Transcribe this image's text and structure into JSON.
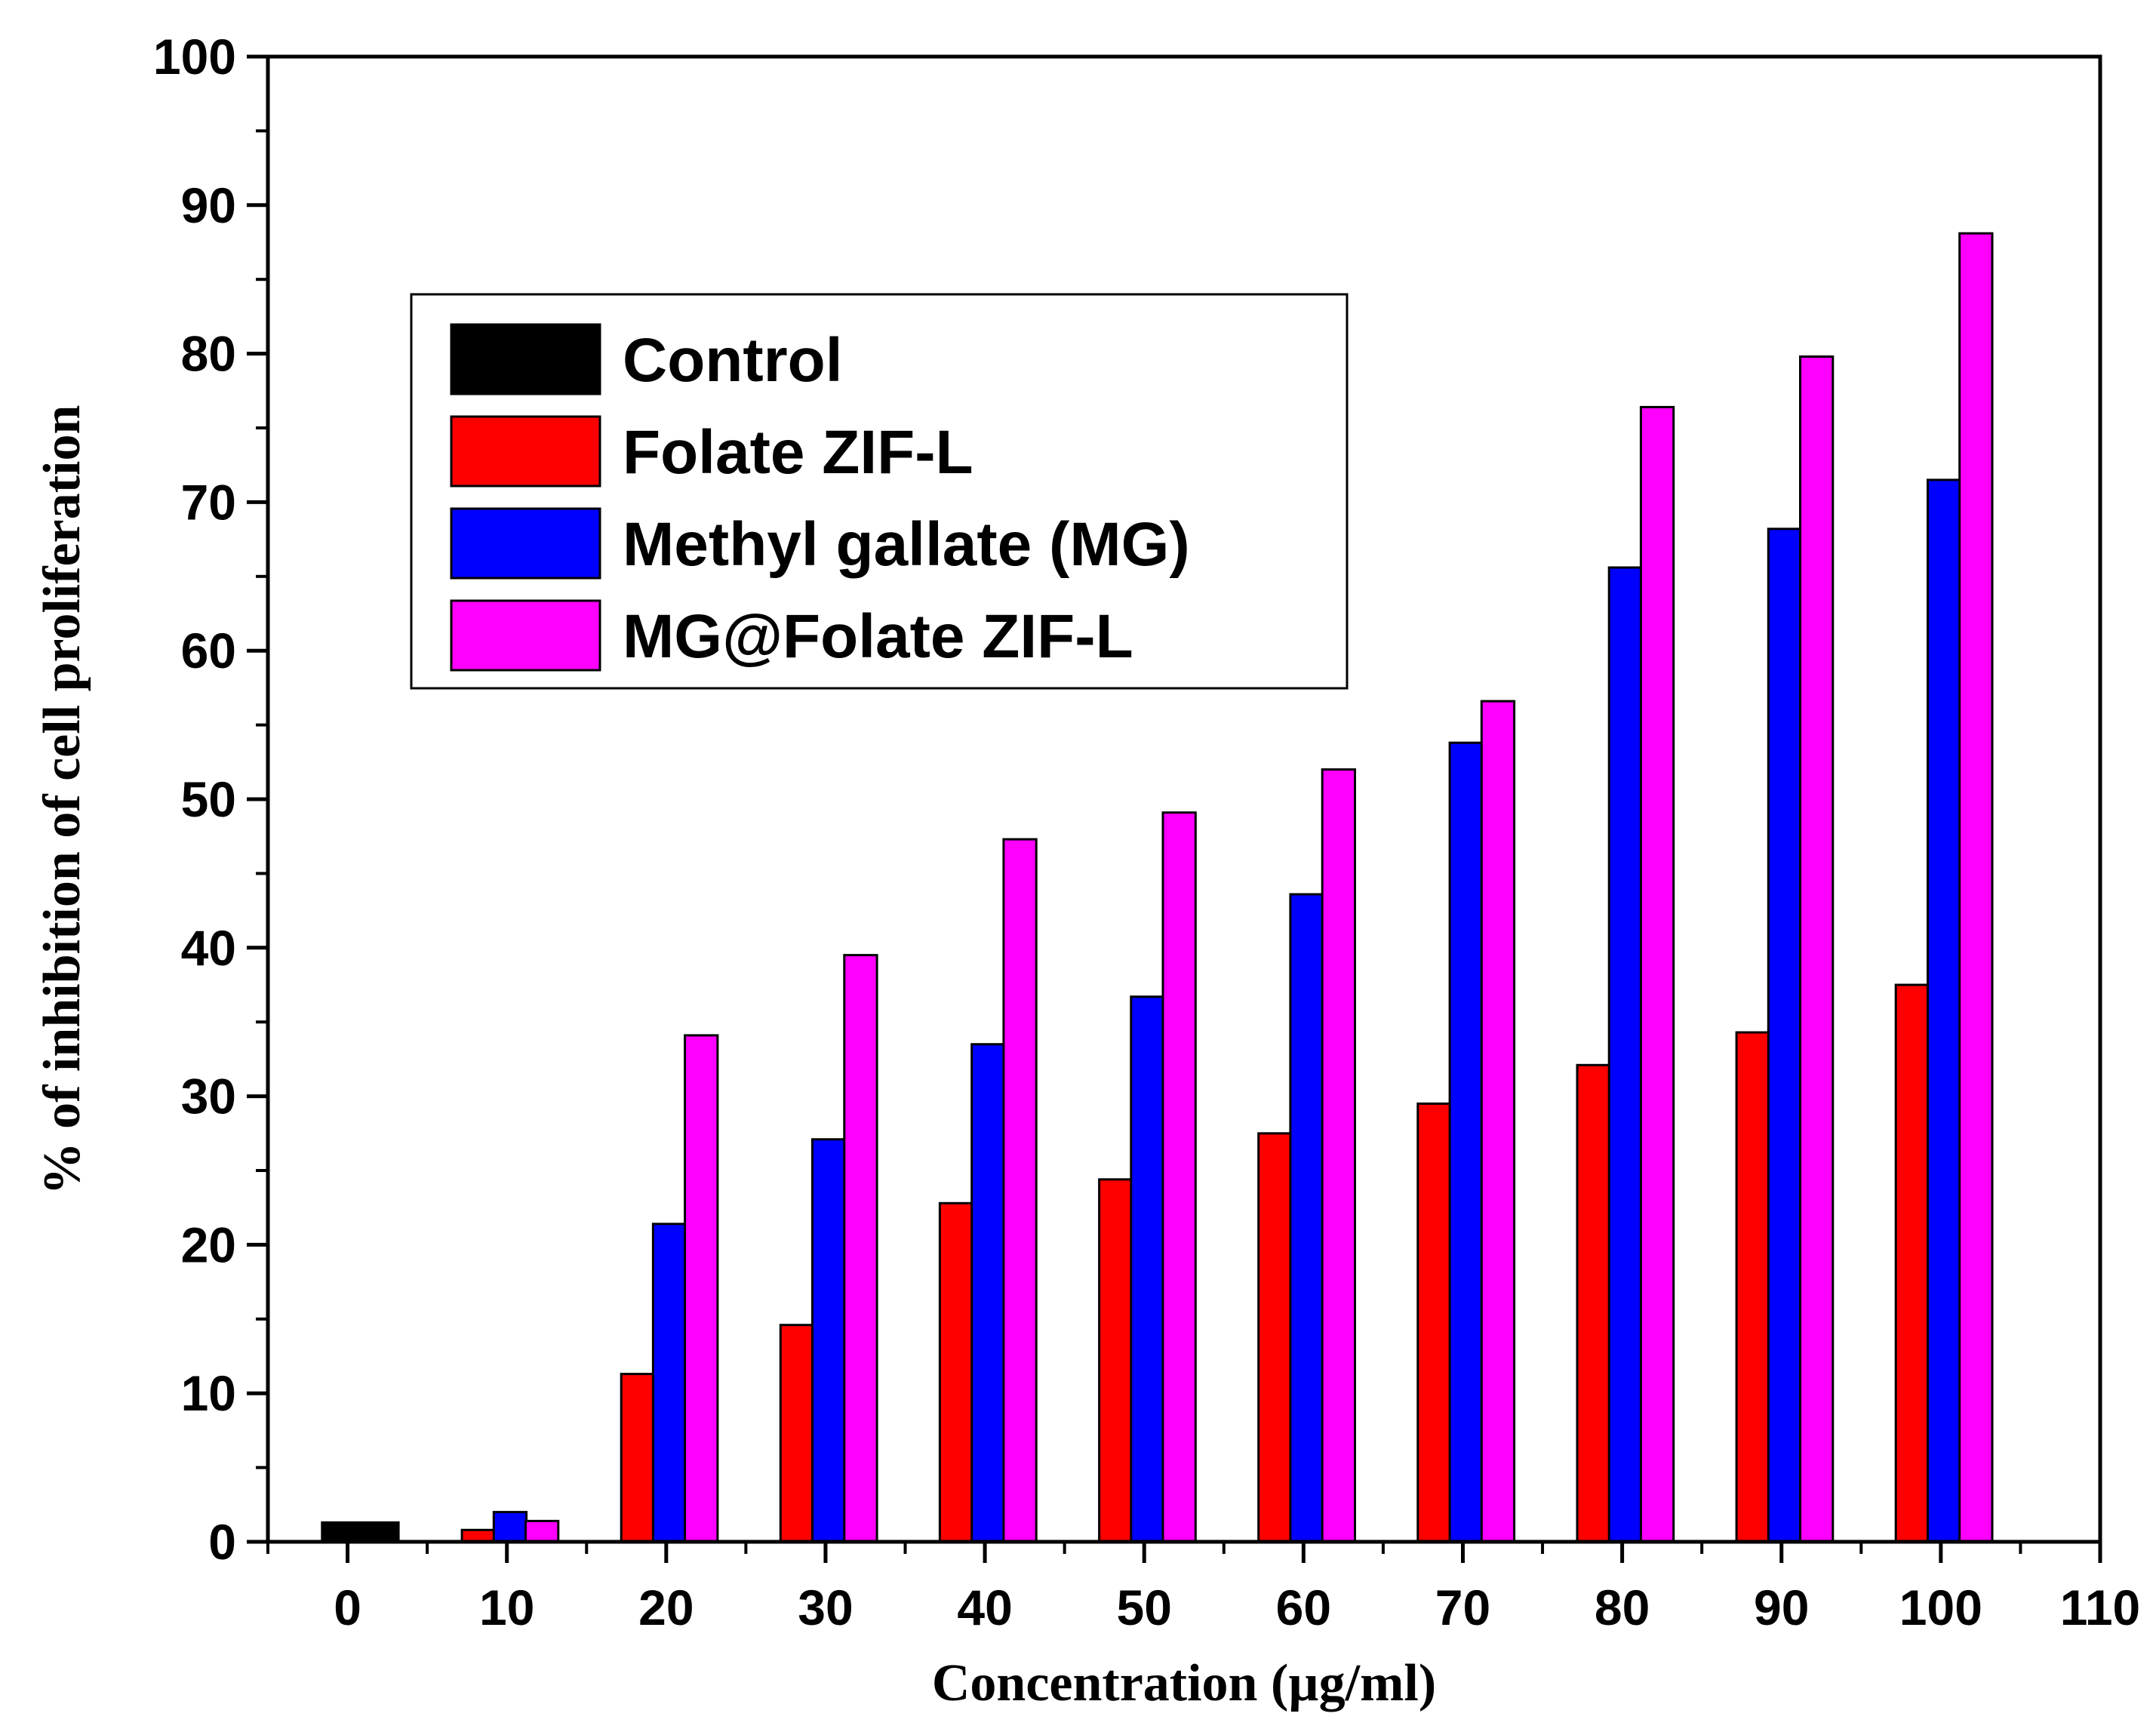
{
  "chart_data": {
    "type": "bar",
    "xlabel": "Concentration (µg/ml)",
    "ylabel": "% of inhibition of cell proliferation",
    "xlim": [
      -5,
      110
    ],
    "ylim": [
      0,
      100
    ],
    "xticks": [
      0,
      10,
      20,
      30,
      40,
      50,
      60,
      70,
      80,
      90,
      100,
      110
    ],
    "yticks": [
      0,
      10,
      20,
      30,
      40,
      50,
      60,
      70,
      80,
      90,
      100
    ],
    "legend_position": "upper-left",
    "series": [
      {
        "name": "Control",
        "color": "#000000",
        "x": [
          0
        ],
        "values": [
          1.3
        ]
      },
      {
        "name": "Folate ZIF-L",
        "color": "#ff0000",
        "x": [
          10,
          20,
          30,
          40,
          50,
          60,
          70,
          80,
          90,
          100
        ],
        "values": [
          0.8,
          11.3,
          14.6,
          22.8,
          24.4,
          27.5,
          29.5,
          32.1,
          34.3,
          37.5
        ]
      },
      {
        "name": "Methyl gallate (MG)",
        "color": "#0000ff",
        "x": [
          10,
          20,
          30,
          40,
          50,
          60,
          70,
          80,
          90,
          100
        ],
        "values": [
          2.0,
          21.4,
          27.1,
          33.5,
          36.7,
          43.6,
          53.8,
          65.6,
          68.2,
          71.5
        ]
      },
      {
        "name": "MG@Folate ZIF-L",
        "color": "#ff00ff",
        "x": [
          10,
          20,
          30,
          40,
          50,
          60,
          70,
          80,
          90,
          100
        ],
        "values": [
          1.4,
          34.1,
          39.5,
          47.3,
          49.1,
          52.0,
          56.6,
          76.4,
          79.8,
          88.1
        ]
      }
    ]
  }
}
